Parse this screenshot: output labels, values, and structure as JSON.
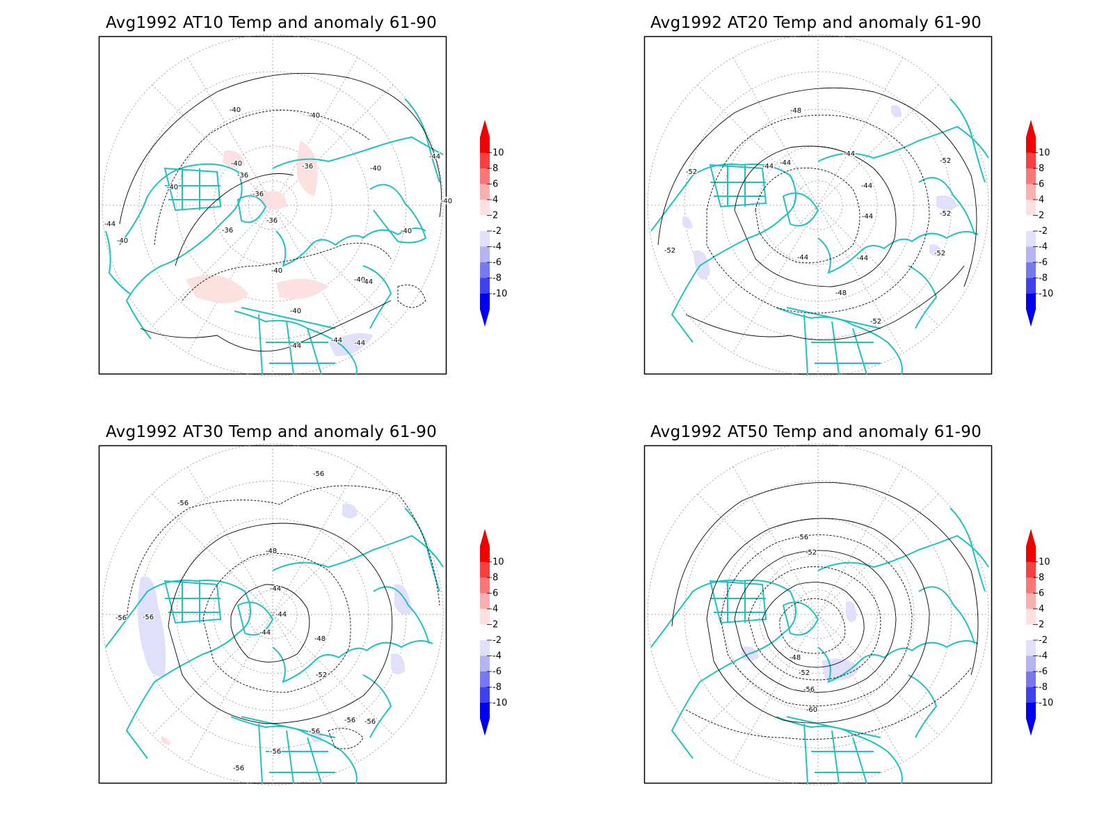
{
  "panels": [
    {
      "title": "Avg1992 AT10 Temp and anomaly 61-90",
      "contour_labels": [
        "-40",
        "-40",
        "-40",
        "-36",
        "-36",
        "-36",
        "-36",
        "-36",
        "-40",
        "-40",
        "-44",
        "-40",
        "-44",
        "-40",
        "-40",
        "-40",
        "-40",
        "-44",
        "-40",
        "-44",
        "-44",
        "-44"
      ],
      "anomalies": [
        {
          "sign": "warm",
          "level": 2
        },
        {
          "sign": "warm",
          "level": 2
        },
        {
          "sign": "warm",
          "level": 2
        },
        {
          "sign": "warm",
          "level": 2
        },
        {
          "sign": "warm",
          "level": 2
        },
        {
          "sign": "cold",
          "level": -2
        }
      ]
    },
    {
      "title": "Avg1992 AT20 Temp and anomaly 61-90",
      "contour_labels": [
        "-48",
        "-44",
        "-44",
        "-44",
        "-44",
        "-52",
        "-52",
        "-44",
        "-44",
        "-52",
        "-52",
        "-52",
        "-48",
        "-52",
        "-44"
      ],
      "anomalies": [
        {
          "sign": "cold",
          "level": -2
        },
        {
          "sign": "cold",
          "level": -2
        },
        {
          "sign": "cold",
          "level": -2
        },
        {
          "sign": "cold",
          "level": -2
        },
        {
          "sign": "cold",
          "level": -2
        }
      ]
    },
    {
      "title": "Avg1992 AT30 Temp and anomaly 61-90",
      "contour_labels": [
        "-56",
        "-56",
        "-48",
        "-44",
        "-44",
        "-44",
        "-48",
        "-56",
        "-56",
        "-52",
        "-56",
        "-56",
        "-56",
        "-56",
        "-56"
      ],
      "anomalies": [
        {
          "sign": "cold",
          "level": -2
        },
        {
          "sign": "cold",
          "level": -2
        },
        {
          "sign": "cold",
          "level": -2
        },
        {
          "sign": "cold",
          "level": -2
        },
        {
          "sign": "cold",
          "level": -2
        },
        {
          "sign": "warm",
          "level": 2
        }
      ]
    },
    {
      "title": "Avg1992 AT50 Temp and anomaly 61-90",
      "contour_labels": [
        "-56",
        "-52",
        "-48",
        "-52",
        "-56",
        "-60"
      ],
      "anomalies": [
        {
          "sign": "cold",
          "level": -2
        },
        {
          "sign": "cold",
          "level": -2
        },
        {
          "sign": "cold",
          "level": -2
        }
      ]
    }
  ],
  "colorbar": {
    "ticks": [
      "10",
      "8",
      "6",
      "4",
      "2",
      "-2",
      "-4",
      "-6",
      "-8",
      "-10"
    ],
    "colors": [
      "#f00000",
      "#f84040",
      "#f87878",
      "#fab0b0",
      "#fde0e0",
      "#ffffff",
      "#e0e0fa",
      "#b4b4f4",
      "#7878f0",
      "#4040f0",
      "#0000f0"
    ],
    "extend": "both"
  },
  "style": {
    "coast_color": "#20c0c0",
    "contour_color": "#000000",
    "grid_color": "#909090"
  }
}
